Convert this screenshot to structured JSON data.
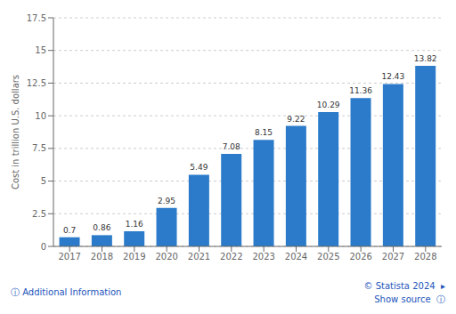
{
  "chart_data": {
    "type": "bar",
    "categories": [
      "2017",
      "2018",
      "2019",
      "2020",
      "2021",
      "2022",
      "2023",
      "2024",
      "2025",
      "2026",
      "2027",
      "2028"
    ],
    "values": [
      0.7,
      0.86,
      1.16,
      2.95,
      5.49,
      7.08,
      8.15,
      9.22,
      10.29,
      11.36,
      12.43,
      13.82
    ],
    "color": "#2b7bca",
    "y_label": "Cost in trillion U.S. dollars",
    "ylim": [
      0,
      17.5
    ],
    "yticks": [
      0,
      2.5,
      5,
      7.5,
      10,
      12.5,
      15,
      17.5
    ],
    "grid": true,
    "data_labels": true,
    "annotations": [
      "ⓘ Additional Information",
      "© Statista 2024  ▸",
      "Show source  ⓘ"
    ]
  }
}
